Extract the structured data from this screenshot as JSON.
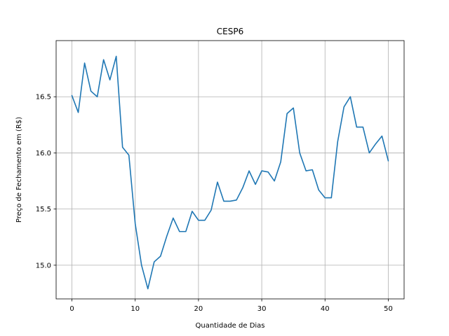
{
  "chart_data": {
    "type": "line",
    "title": "CESP6",
    "xlabel": "Quantidade de Dias",
    "ylabel": "Preço de Fechamento em (R$)",
    "xlim": [
      -2.5,
      52.5
    ],
    "ylim": [
      14.7,
      17.0
    ],
    "grid": true,
    "xticks": [
      0,
      10,
      20,
      30,
      40,
      50
    ],
    "xtick_labels": [
      "0",
      "10",
      "20",
      "30",
      "40",
      "50"
    ],
    "yticks": [
      15.0,
      15.5,
      16.0,
      16.5
    ],
    "ytick_labels": [
      "15.0",
      "15.5",
      "16.0",
      "16.5"
    ],
    "series": [
      {
        "color": "#1f77b4",
        "x": [
          0,
          1,
          2,
          3,
          4,
          5,
          6,
          7,
          8,
          9,
          10,
          11,
          12,
          13,
          14,
          15,
          16,
          17,
          18,
          19,
          20,
          21,
          22,
          23,
          24,
          25,
          26,
          27,
          28,
          29,
          30,
          31,
          32,
          33,
          34,
          35,
          36,
          37,
          38,
          39,
          40,
          41,
          42,
          43,
          44,
          45,
          46,
          47,
          48,
          49,
          50
        ],
        "y": [
          16.51,
          16.36,
          16.8,
          16.55,
          16.5,
          16.83,
          16.65,
          16.86,
          16.05,
          15.98,
          15.37,
          15.0,
          14.79,
          15.03,
          15.08,
          15.26,
          15.42,
          15.3,
          15.3,
          15.48,
          15.4,
          15.4,
          15.49,
          15.74,
          15.57,
          15.57,
          15.58,
          15.69,
          15.84,
          15.72,
          15.84,
          15.83,
          15.75,
          15.92,
          16.35,
          16.4,
          16.0,
          15.84,
          15.85,
          15.67,
          15.6,
          15.6,
          16.1,
          16.41,
          16.5,
          16.23,
          16.23,
          16.0,
          16.08,
          16.15,
          15.93
        ]
      }
    ]
  }
}
